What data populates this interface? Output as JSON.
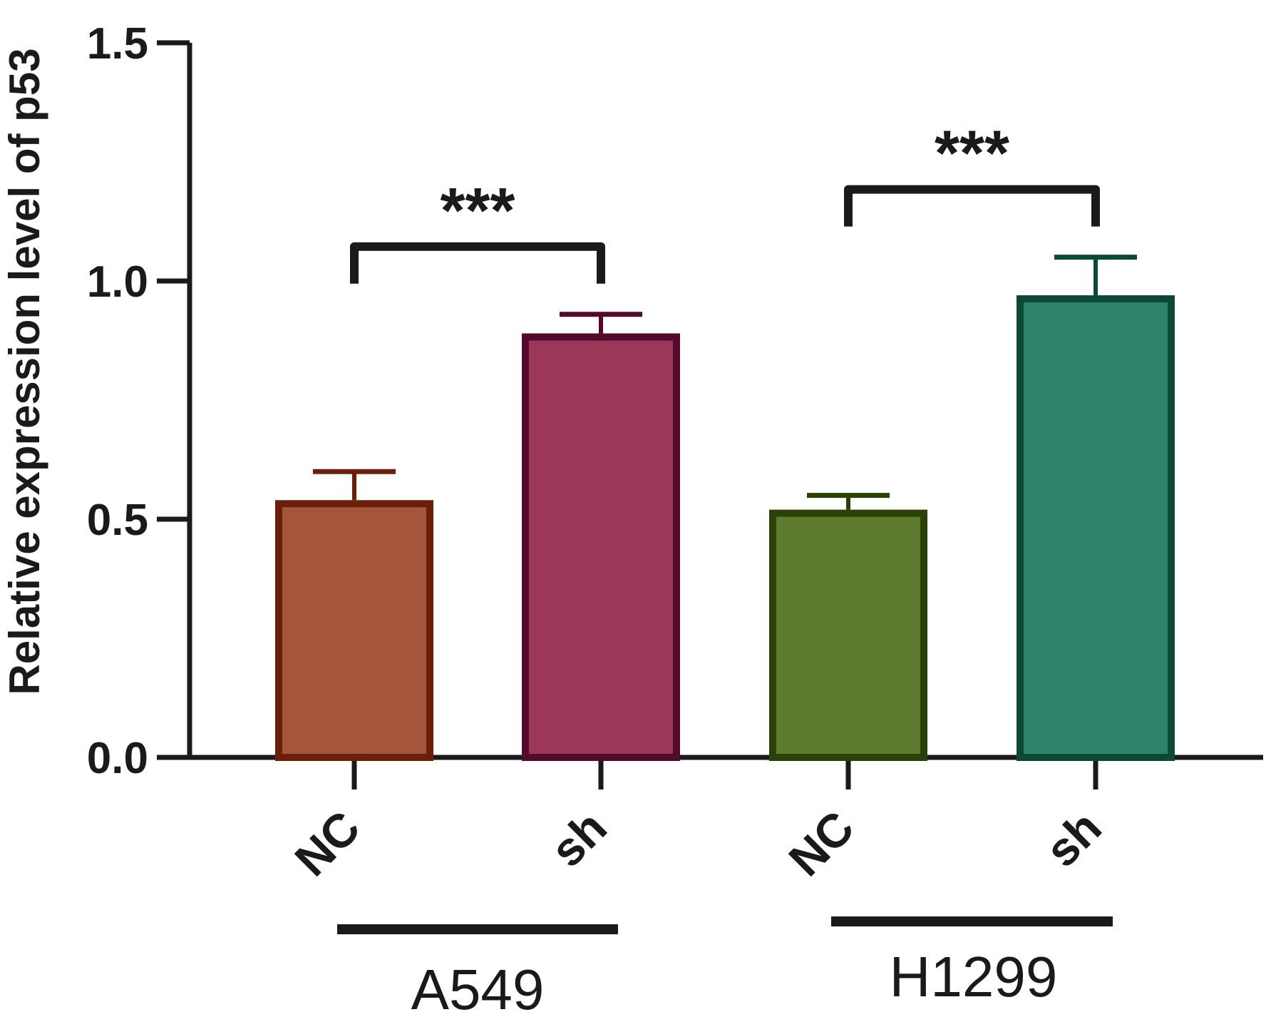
{
  "chart_data": {
    "type": "bar",
    "title": "",
    "ylabel": "Relative expression level of p53",
    "xlabel": "",
    "ylim": [
      0,
      1.5
    ],
    "yticks": [
      "0.0",
      "0.5",
      "1.0",
      "1.5"
    ],
    "grid": false,
    "categories": [
      "NC",
      "sh",
      "NC",
      "sh"
    ],
    "groups": [
      {
        "label": "A549",
        "bars": [
          0,
          1
        ]
      },
      {
        "label": "H1299",
        "bars": [
          2,
          3
        ]
      }
    ],
    "bars": [
      {
        "category": "NC",
        "group": "A549",
        "value": 0.54,
        "error": 0.06,
        "fill": "#a5553c",
        "stroke": "#6b1e08"
      },
      {
        "category": "sh",
        "group": "A549",
        "value": 0.89,
        "error": 0.04,
        "fill": "#9b3859",
        "stroke": "#540a2a"
      },
      {
        "category": "NC",
        "group": "H1299",
        "value": 0.52,
        "error": 0.03,
        "fill": "#5e7a2e",
        "stroke": "#2a4208"
      },
      {
        "category": "sh",
        "group": "H1299",
        "value": 0.97,
        "error": 0.08,
        "fill": "#2e846a",
        "stroke": "#0c4838"
      }
    ],
    "significance": [
      {
        "between": [
          0,
          1
        ],
        "label": "***"
      },
      {
        "between": [
          2,
          3
        ],
        "label": "***"
      }
    ]
  }
}
